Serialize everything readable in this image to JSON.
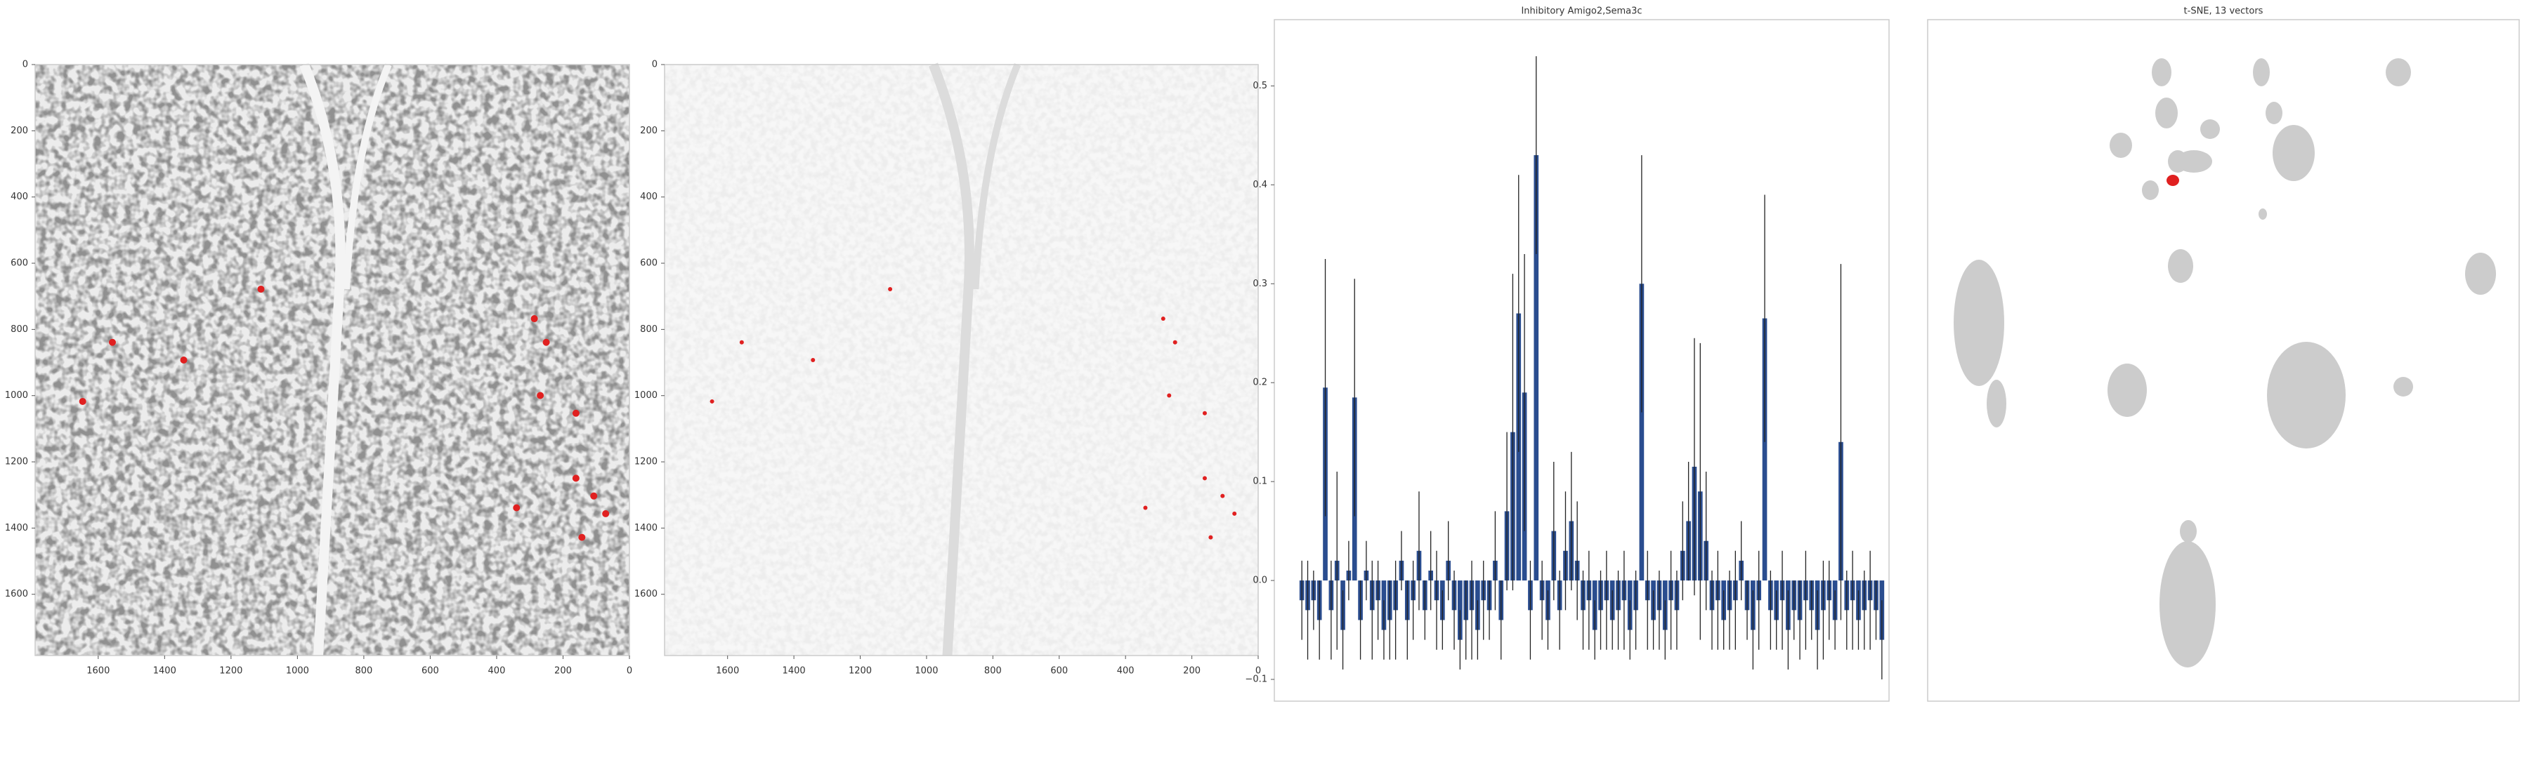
{
  "chart_data": [
    {
      "type": "image",
      "xlim": [
        1790,
        0
      ],
      "ylim": [
        0,
        1785
      ],
      "xticks": [
        1600,
        1400,
        1200,
        1000,
        800,
        600,
        400,
        200,
        0
      ],
      "yticks": [
        0,
        200,
        400,
        600,
        800,
        1000,
        1200,
        1400,
        1600
      ],
      "tone": "dark"
    },
    {
      "type": "image",
      "xlim": [
        1790,
        0
      ],
      "ylim": [
        0,
        1785
      ],
      "xticks": [
        1600,
        1400,
        1200,
        1000,
        800,
        600,
        400,
        200,
        0
      ],
      "yticks": [
        0,
        200,
        400,
        600,
        800,
        1000,
        1200,
        1400,
        1600
      ],
      "tone": "light"
    },
    {
      "type": "bar",
      "title": "Inhibitory Amigo2,Sema3c",
      "color": "#2a4d8f",
      "ylim": [
        -0.122,
        0.567
      ],
      "yticks": [
        {
          "value": -0.1,
          "label": "−0.1"
        },
        {
          "value": 0,
          "label": "0.0"
        },
        0.1,
        0.2,
        0.3,
        0.4,
        0.5
      ],
      "values": [
        -0.02,
        -0.03,
        -0.02,
        -0.04,
        0.195,
        -0.03,
        0.02,
        -0.05,
        0.01,
        0.185,
        -0.04,
        0.01,
        -0.03,
        -0.02,
        -0.05,
        -0.04,
        -0.03,
        0.02,
        -0.04,
        -0.02,
        0.03,
        -0.03,
        0.01,
        -0.02,
        -0.04,
        0.02,
        -0.03,
        -0.06,
        -0.04,
        -0.03,
        -0.05,
        -0.02,
        -0.03,
        0.02,
        -0.04,
        0.07,
        0.15,
        0.27,
        0.19,
        -0.03,
        0.43,
        -0.02,
        -0.04,
        0.05,
        -0.03,
        0.03,
        0.06,
        0.02,
        -0.03,
        -0.02,
        -0.05,
        -0.03,
        -0.02,
        -0.04,
        -0.03,
        -0.02,
        -0.05,
        -0.03,
        0.3,
        -0.02,
        -0.04,
        -0.03,
        -0.05,
        -0.02,
        -0.03,
        0.03,
        0.06,
        0.115,
        0.09,
        0.04,
        -0.03,
        -0.02,
        -0.04,
        -0.03,
        -0.02,
        0.02,
        -0.03,
        -0.05,
        -0.02,
        0.265,
        -0.03,
        -0.04,
        -0.02,
        -0.05,
        -0.03,
        -0.04,
        -0.02,
        -0.03,
        -0.05,
        -0.03,
        -0.02,
        -0.04,
        0.14,
        -0.03,
        -0.02,
        -0.04,
        -0.03,
        -0.02,
        -0.03,
        -0.06
      ],
      "errors": [
        0.04,
        0.05,
        0.03,
        0.04,
        0.13,
        0.05,
        0.09,
        0.04,
        0.03,
        0.12,
        0.04,
        0.03,
        0.05,
        0.04,
        0.03,
        0.04,
        0.05,
        0.03,
        0.04,
        0.04,
        0.06,
        0.03,
        0.04,
        0.05,
        0.03,
        0.04,
        0.04,
        0.03,
        0.04,
        0.05,
        0.03,
        0.04,
        0.03,
        0.05,
        0.04,
        0.08,
        0.16,
        0.14,
        0.14,
        0.05,
        0.1,
        0.04,
        0.03,
        0.07,
        0.04,
        0.06,
        0.07,
        0.06,
        0.04,
        0.05,
        0.03,
        0.04,
        0.05,
        0.03,
        0.04,
        0.05,
        0.03,
        0.04,
        0.13,
        0.05,
        0.03,
        0.04,
        0.03,
        0.05,
        0.04,
        0.05,
        0.06,
        0.13,
        0.15,
        0.07,
        0.04,
        0.05,
        0.03,
        0.04,
        0.05,
        0.04,
        0.03,
        0.04,
        0.05,
        0.125,
        0.04,
        0.03,
        0.05,
        0.04,
        0.03,
        0.04,
        0.05,
        0.03,
        0.04,
        0.05,
        0.04,
        0.03,
        0.18,
        0.04,
        0.05,
        0.03,
        0.04,
        0.05,
        0.03,
        0.04
      ]
    },
    {
      "type": "scatter",
      "title": "t-SNE, 13 vectors"
    }
  ]
}
